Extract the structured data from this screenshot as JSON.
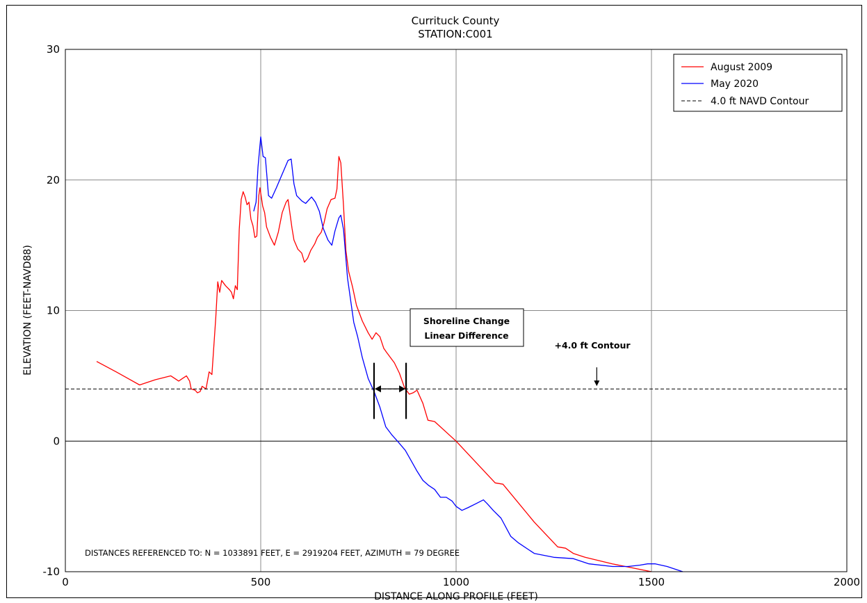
{
  "chart_data": {
    "type": "line",
    "title": "Currituck County",
    "subtitle": "STATION:C001",
    "xlabel": "DISTANCE ALONG PROFILE (FEET)",
    "ylabel": "ELEVATION (FEET-NAVD88)",
    "xlim": [
      0,
      2000
    ],
    "ylim": [
      -10,
      30
    ],
    "xticks": [
      0,
      500,
      1000,
      1500,
      2000
    ],
    "yticks": [
      -10,
      0,
      10,
      20,
      30
    ],
    "grid": true,
    "legend_position": "top-right",
    "series": [
      {
        "name": "August 2009",
        "color": "#ff0000",
        "style": "solid",
        "points": [
          [
            80,
            6.1
          ],
          [
            130,
            5.3
          ],
          [
            160,
            4.8
          ],
          [
            190,
            4.3
          ],
          [
            210,
            4.5
          ],
          [
            230,
            4.7
          ],
          [
            270,
            5.0
          ],
          [
            290,
            4.6
          ],
          [
            300,
            4.8
          ],
          [
            310,
            5.0
          ],
          [
            318,
            4.6
          ],
          [
            322,
            4.0
          ],
          [
            332,
            3.9
          ],
          [
            338,
            3.7
          ],
          [
            345,
            3.8
          ],
          [
            350,
            4.2
          ],
          [
            360,
            4.0
          ],
          [
            368,
            5.3
          ],
          [
            375,
            5.1
          ],
          [
            385,
            9.5
          ],
          [
            390,
            12.2
          ],
          [
            395,
            11.4
          ],
          [
            400,
            12.3
          ],
          [
            410,
            11.9
          ],
          [
            420,
            11.6
          ],
          [
            425,
            11.4
          ],
          [
            430,
            10.9
          ],
          [
            435,
            11.9
          ],
          [
            440,
            11.6
          ],
          [
            445,
            16.2
          ],
          [
            450,
            18.5
          ],
          [
            455,
            19.1
          ],
          [
            460,
            18.7
          ],
          [
            465,
            18.1
          ],
          [
            470,
            18.3
          ],
          [
            475,
            17.0
          ],
          [
            480,
            16.5
          ],
          [
            485,
            15.6
          ],
          [
            490,
            15.7
          ],
          [
            495,
            18.8
          ],
          [
            498,
            19.4
          ],
          [
            505,
            18.0
          ],
          [
            510,
            17.5
          ],
          [
            515,
            16.4
          ],
          [
            525,
            15.6
          ],
          [
            535,
            15.0
          ],
          [
            545,
            16.0
          ],
          [
            555,
            17.5
          ],
          [
            565,
            18.3
          ],
          [
            570,
            18.5
          ],
          [
            580,
            16.3
          ],
          [
            585,
            15.4
          ],
          [
            595,
            14.7
          ],
          [
            605,
            14.4
          ],
          [
            612,
            13.7
          ],
          [
            620,
            14.0
          ],
          [
            628,
            14.6
          ],
          [
            638,
            15.1
          ],
          [
            645,
            15.6
          ],
          [
            655,
            16.0
          ],
          [
            662,
            16.7
          ],
          [
            670,
            17.8
          ],
          [
            680,
            18.5
          ],
          [
            690,
            18.6
          ],
          [
            695,
            19.3
          ],
          [
            700,
            21.8
          ],
          [
            705,
            21.3
          ],
          [
            712,
            18.0
          ],
          [
            718,
            14.6
          ],
          [
            725,
            13.0
          ],
          [
            735,
            11.8
          ],
          [
            745,
            10.4
          ],
          [
            760,
            9.2
          ],
          [
            775,
            8.3
          ],
          [
            785,
            7.8
          ],
          [
            795,
            8.3
          ],
          [
            805,
            8.0
          ],
          [
            815,
            7.1
          ],
          [
            822,
            6.8
          ],
          [
            832,
            6.4
          ],
          [
            842,
            6.0
          ],
          [
            855,
            5.2
          ],
          [
            868,
            4.1
          ],
          [
            880,
            3.6
          ],
          [
            890,
            3.7
          ],
          [
            900,
            3.9
          ],
          [
            915,
            2.9
          ],
          [
            928,
            1.6
          ],
          [
            945,
            1.5
          ],
          [
            1000,
            0.0
          ],
          [
            1050,
            -1.6
          ],
          [
            1100,
            -3.2
          ],
          [
            1120,
            -3.3
          ],
          [
            1200,
            -6.2
          ],
          [
            1260,
            -8.1
          ],
          [
            1280,
            -8.2
          ],
          [
            1300,
            -8.6
          ],
          [
            1330,
            -8.9
          ],
          [
            1400,
            -9.4
          ],
          [
            1450,
            -9.7
          ],
          [
            1500,
            -10.0
          ]
        ]
      },
      {
        "name": "May 2020",
        "color": "#0000ff",
        "style": "solid",
        "points": [
          [
            482,
            17.6
          ],
          [
            488,
            18.3
          ],
          [
            493,
            21.0
          ],
          [
            500,
            23.3
          ],
          [
            506,
            21.8
          ],
          [
            512,
            21.7
          ],
          [
            520,
            18.8
          ],
          [
            528,
            18.6
          ],
          [
            540,
            19.4
          ],
          [
            560,
            20.8
          ],
          [
            570,
            21.5
          ],
          [
            578,
            21.6
          ],
          [
            585,
            19.7
          ],
          [
            592,
            18.8
          ],
          [
            605,
            18.4
          ],
          [
            615,
            18.2
          ],
          [
            630,
            18.7
          ],
          [
            640,
            18.3
          ],
          [
            650,
            17.6
          ],
          [
            660,
            16.3
          ],
          [
            672,
            15.4
          ],
          [
            682,
            15.0
          ],
          [
            690,
            16.1
          ],
          [
            700,
            17.1
          ],
          [
            705,
            17.3
          ],
          [
            712,
            16.2
          ],
          [
            722,
            12.5
          ],
          [
            738,
            9.1
          ],
          [
            748,
            8.0
          ],
          [
            760,
            6.4
          ],
          [
            775,
            4.8
          ],
          [
            790,
            3.8
          ],
          [
            805,
            2.6
          ],
          [
            820,
            1.1
          ],
          [
            835,
            0.5
          ],
          [
            850,
            0.0
          ],
          [
            870,
            -0.7
          ],
          [
            885,
            -1.5
          ],
          [
            900,
            -2.3
          ],
          [
            915,
            -3.0
          ],
          [
            930,
            -3.4
          ],
          [
            945,
            -3.7
          ],
          [
            960,
            -4.3
          ],
          [
            975,
            -4.3
          ],
          [
            990,
            -4.6
          ],
          [
            1000,
            -5.0
          ],
          [
            1015,
            -5.3
          ],
          [
            1030,
            -5.1
          ],
          [
            1050,
            -4.8
          ],
          [
            1070,
            -4.5
          ],
          [
            1080,
            -4.8
          ],
          [
            1095,
            -5.3
          ],
          [
            1115,
            -5.9
          ],
          [
            1140,
            -7.3
          ],
          [
            1160,
            -7.8
          ],
          [
            1200,
            -8.6
          ],
          [
            1250,
            -8.9
          ],
          [
            1300,
            -9.0
          ],
          [
            1340,
            -9.4
          ],
          [
            1400,
            -9.6
          ],
          [
            1440,
            -9.6
          ],
          [
            1470,
            -9.5
          ],
          [
            1490,
            -9.4
          ],
          [
            1510,
            -9.4
          ],
          [
            1540,
            -9.6
          ],
          [
            1580,
            -10.0
          ]
        ]
      },
      {
        "name": "4.0 ft NAVD Contour",
        "color": "#000000",
        "style": "dashed",
        "points": [
          [
            0,
            4.0
          ],
          [
            2000,
            4.0
          ]
        ]
      }
    ],
    "annotations": {
      "box_line1": "Shoreline Change",
      "box_line2": "Linear Difference",
      "contour_label": "+4.0 ft Contour",
      "contour_arrow_x": 1360,
      "marker_x_left": 790,
      "marker_x_right": 872,
      "marker_y_range": [
        1.7,
        6.0
      ],
      "reference_note": "DISTANCES REFERENCED TO: N = 1033891 FEET, E = 2919204 FEET, AZIMUTH = 79 DEGREE"
    }
  }
}
